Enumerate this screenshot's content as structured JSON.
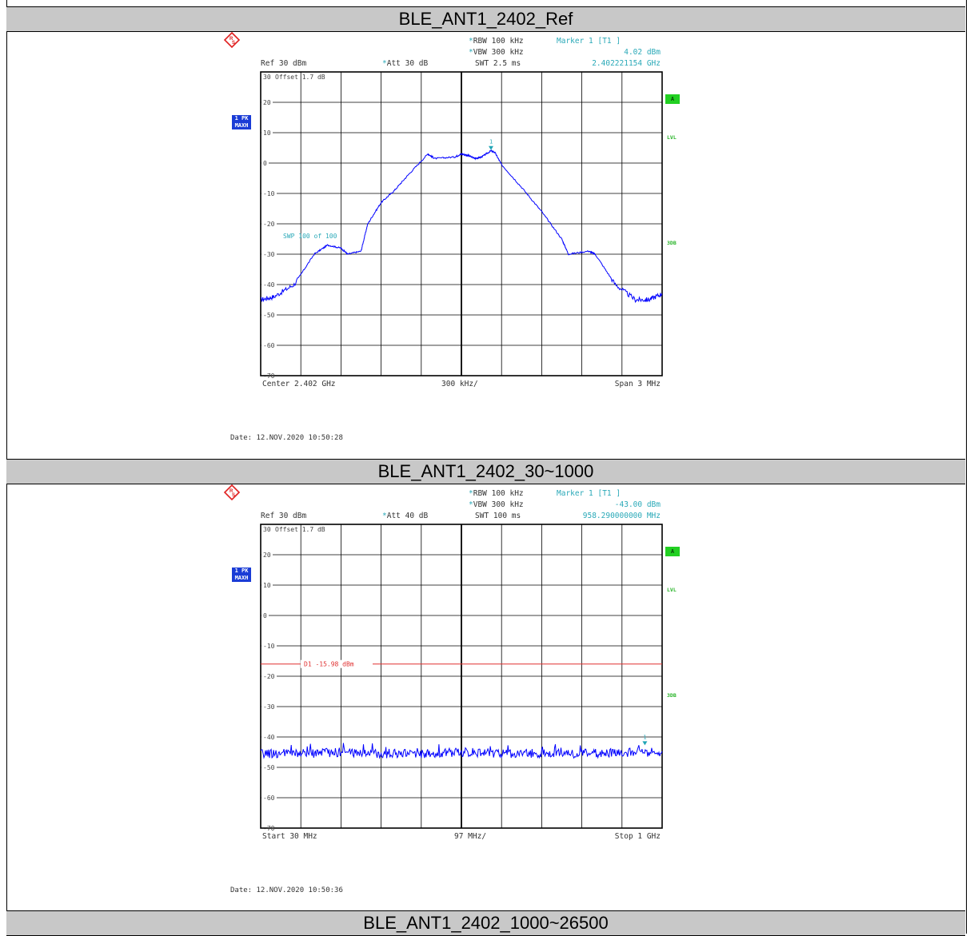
{
  "sections": [
    {
      "title": "BLE_ANT1_2402_Ref",
      "header": {
        "ref": "Ref  30 dBm",
        "att": "Att  30 dB",
        "rbw": "RBW 100 kHz",
        "vbw": "VBW 300 kHz",
        "swt": "SWT 2.5 ms",
        "marker_label": "Marker 1 [T1 ]",
        "marker_level": "4.02 dBm",
        "marker_freq": "2.402221154 GHz",
        "offset": "Offset   1.7 dB",
        "trace_badge": "1 PK\nMAXH",
        "side_a": "A",
        "side_lvl": "LVL",
        "side_3db": "3DB",
        "swp": "SWP   100 of  100"
      },
      "footer": {
        "left": "Center  2.402 GHz",
        "mid": "300 kHz/",
        "right": "Span  3 MHz"
      },
      "date": "Date: 12.NOV.2020  10:50:28",
      "chart_data": {
        "type": "line",
        "title": "BLE_ANT1_2402_Ref",
        "xlabel": "",
        "ylabel": "",
        "xlim": [
          2.4005,
          2.4035
        ],
        "x_unit": "GHz",
        "ylim": [
          -70,
          30
        ],
        "ytick_labels": [
          "30",
          "20",
          "10",
          "0",
          "-10",
          "-20",
          "-30",
          "-40",
          "-50",
          "-60",
          "-70"
        ],
        "grid": true,
        "series": [
          {
            "color": "#0000ff",
            "x": [
              2.4005,
              2.4006,
              2.40075,
              2.4009,
              2.401,
              2.4011,
              2.40115,
              2.40125,
              2.4013,
              2.4014,
              2.4015,
              2.4016,
              2.40175,
              2.4018,
              2.40195,
              2.402,
              2.40205,
              2.4021,
              2.40215,
              2.40222,
              2.40225,
              2.4023,
              2.40245,
              2.4026,
              2.40275,
              2.4028,
              2.40295,
              2.403,
              2.40315,
              2.4033,
              2.4034,
              2.4035
            ],
            "values": [
              -45,
              -44,
              -40,
              -30,
              -27,
              -28,
              -30,
              -29,
              -20,
              -13,
              -9,
              -4,
              3,
              1.5,
              2,
              3,
              2.5,
              1.5,
              2,
              4.02,
              3.5,
              -0.5,
              -8,
              -16,
              -25,
              -30,
              -29,
              -30,
              -40,
              -45,
              -45,
              -43
            ]
          }
        ],
        "markers": [
          {
            "label": "1",
            "x": 2.402221154,
            "y": 4.02
          }
        ]
      }
    },
    {
      "title": "BLE_ANT1_2402_30~1000",
      "header": {
        "ref": "Ref  30 dBm",
        "att": "Att  40 dB",
        "rbw": "RBW 100 kHz",
        "vbw": "VBW 300 kHz",
        "swt": "SWT 100 ms",
        "marker_label": "Marker 1 [T1 ]",
        "marker_level": "-43.00 dBm",
        "marker_freq": "958.290000000 MHz",
        "offset": "Offset   1.7 dB",
        "trace_badge": "1 PK\nMAXH",
        "side_a": "A",
        "side_lvl": "LVL",
        "side_3db": "3DB",
        "d1_line": "D1 -15.98 dBm"
      },
      "footer": {
        "left": "Start  30 MHz",
        "mid": "97 MHz/",
        "right": "Stop  1 GHz"
      },
      "date": "Date: 12.NOV.2020  10:50:36",
      "chart_data": {
        "type": "line",
        "title": "BLE_ANT1_2402_30~1000",
        "xlabel": "",
        "ylabel": "",
        "xlim": [
          30,
          1000
        ],
        "x_unit": "MHz",
        "ylim": [
          -70,
          30
        ],
        "ytick_labels": [
          "30",
          "20",
          "10",
          "0",
          "-10",
          "-20",
          "-30",
          "-40",
          "-50",
          "-60",
          "-70"
        ],
        "grid": true,
        "limit_line": {
          "label": "D1 -15.98 dBm",
          "y": -15.98,
          "color": "#e03030"
        },
        "series": [
          {
            "color": "#0000ff",
            "x": [
              30,
              130,
              230,
              330,
              430,
              530,
              630,
              730,
              830,
              930,
              1000
            ],
            "values": [
              -45.5,
              -45.5,
              -45,
              -45.5,
              -45.5,
              -45,
              -45.5,
              -45.5,
              -45.5,
              -45,
              -45
            ]
          }
        ],
        "markers": [
          {
            "label": "1",
            "x": 958.29,
            "y": -43.0
          }
        ]
      }
    },
    {
      "title": "BLE_ANT1_2402_1000~26500"
    }
  ]
}
